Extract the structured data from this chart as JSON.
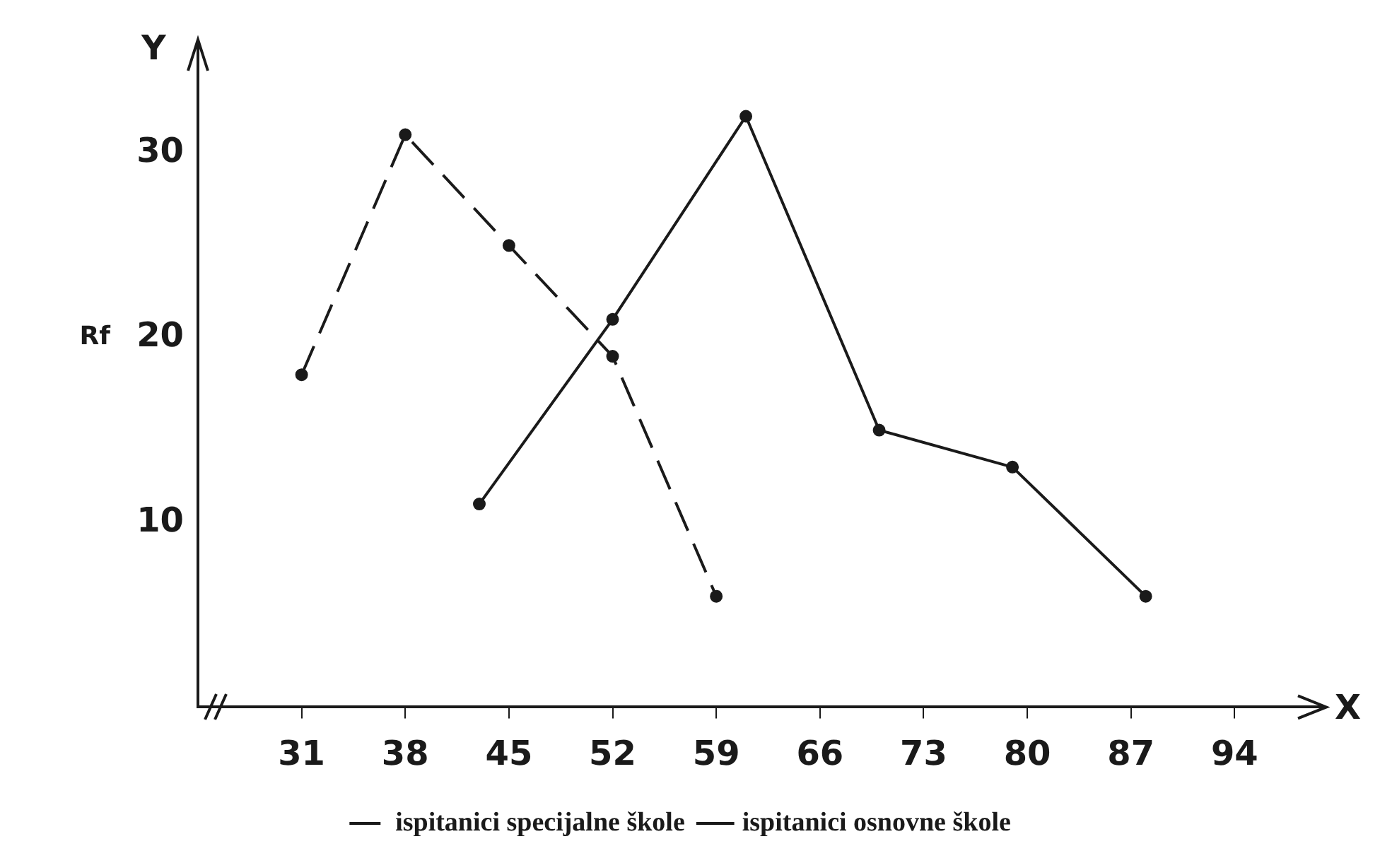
{
  "chart_data": {
    "type": "line",
    "xlabel": "X",
    "ylabel": "Rf",
    "annotations": [
      "Y"
    ],
    "xlim": [
      24,
      100
    ],
    "xticks": [
      31,
      38,
      45,
      52,
      59,
      66,
      73,
      80,
      87,
      94
    ],
    "ylim": [
      0,
      36
    ],
    "yticks": [
      10,
      20,
      30
    ],
    "grid": false,
    "legend": "bottom",
    "marker": "circle",
    "series": [
      {
        "name": "ispitanici specijalne škole",
        "color": "#1a1a1a",
        "line_style": "dashed",
        "x": [
          31,
          38,
          45,
          52,
          59
        ],
        "values": [
          18,
          31,
          25,
          19,
          6
        ]
      },
      {
        "name": "ispitanici osnovne škole",
        "color": "#1a1a1a",
        "line_style": "solid",
        "x": [
          43,
          52,
          61,
          70,
          79,
          88
        ],
        "values": [
          11,
          21,
          32,
          15,
          13,
          6
        ]
      }
    ]
  }
}
